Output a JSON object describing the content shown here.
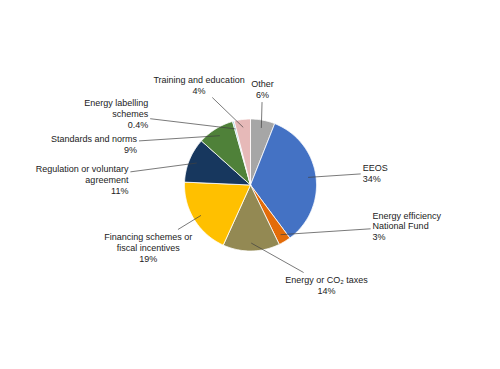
{
  "chart_data": {
    "type": "pie",
    "categories": [
      "Other",
      "EEOS",
      "Energy efficiency\nNational Fund",
      "Energy or CO₂ taxes",
      "Financing schemes or\nfiscal incentives",
      "Regulation or voluntary\nagreement",
      "Standards and norms",
      "Energy labelling\nschemes",
      "Training and education"
    ],
    "values": [
      6,
      34,
      3,
      14,
      19,
      11,
      9,
      0.4,
      4
    ],
    "value_labels": [
      "6%",
      "34%",
      "3%",
      "14%",
      "19%",
      "11%",
      "9%",
      "0.4%",
      "4%"
    ],
    "colors": [
      "#A6A6A6",
      "#4472C4",
      "#E36C09",
      "#938953",
      "#FFC000",
      "#17375E",
      "#4F8139",
      "#92CDDC",
      "#E6B9B8"
    ],
    "data_labels": true
  }
}
